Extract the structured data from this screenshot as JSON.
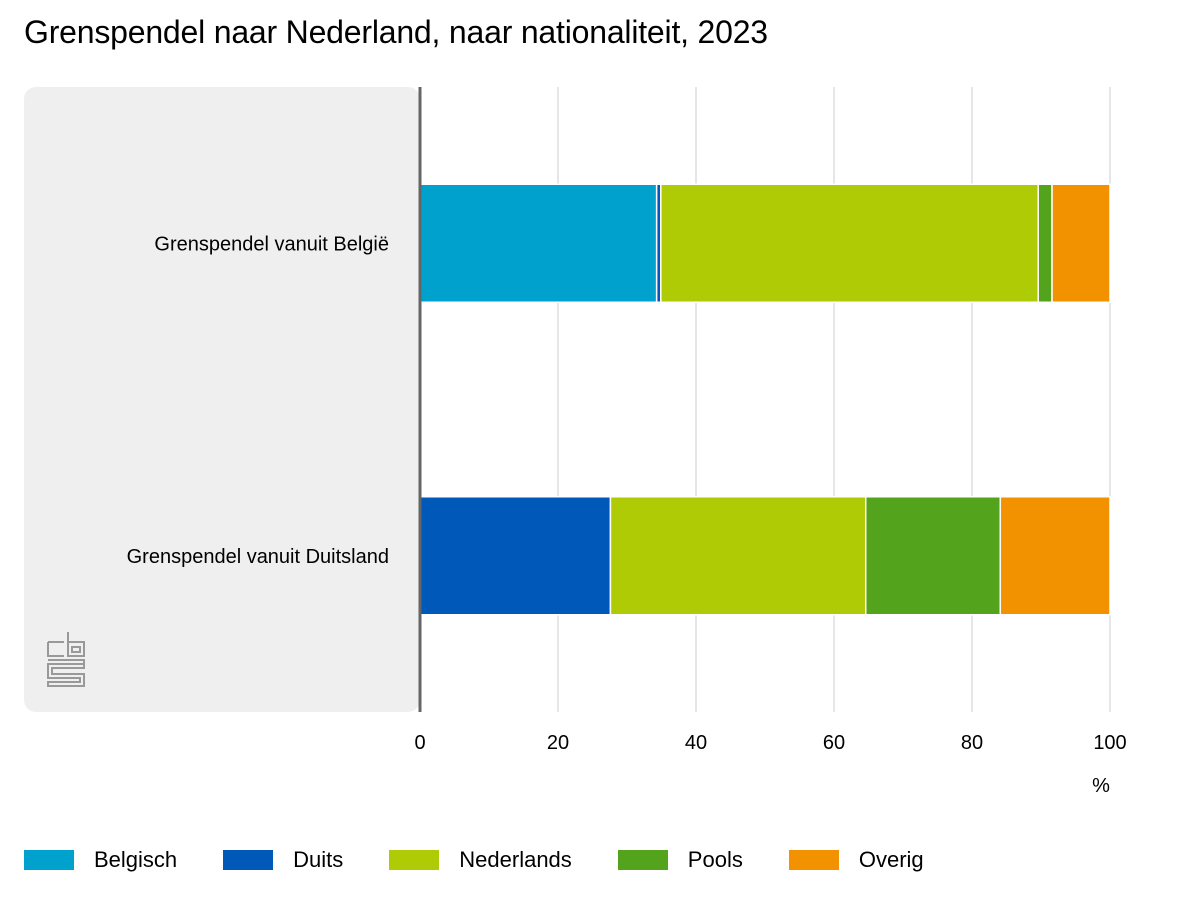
{
  "title": "Grenspendel naar Nederland, naar nationaliteit, 2023",
  "chart_data": {
    "type": "bar",
    "orientation": "horizontal",
    "stacked": true,
    "categories": [
      "Grenspendel vanuit België",
      "Grenspendel vanuit Duitsland"
    ],
    "series": [
      {
        "name": "Belgisch",
        "color": "#00a1cd",
        "values": [
          34.3,
          0
        ]
      },
      {
        "name": "Duits",
        "color": "#0058b8",
        "values": [
          0.6,
          27.6
        ]
      },
      {
        "name": "Nederlands",
        "color": "#afcb05",
        "values": [
          54.7,
          37.0
        ]
      },
      {
        "name": "Pools",
        "color": "#53a31d",
        "values": [
          2.0,
          19.5
        ]
      },
      {
        "name": "Overig",
        "color": "#f39200",
        "values": [
          8.4,
          15.9
        ]
      }
    ],
    "x_ticks": [
      0,
      20,
      40,
      60,
      80,
      100
    ],
    "x_unit": "%",
    "xlim": [
      0,
      100
    ],
    "grid": true,
    "legend_position": "bottom"
  },
  "colors": {
    "panel": "#efefef",
    "axis": "#666666",
    "grid": "#cccccc",
    "logo": "#999999"
  },
  "logo_icon": "cbs-logo-icon"
}
